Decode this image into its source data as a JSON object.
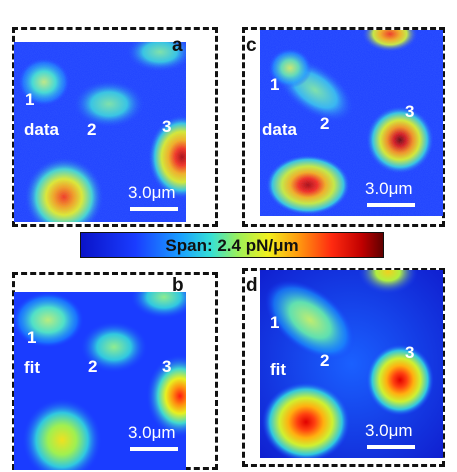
{
  "colorbar": {
    "label": "Span: 2.4 pN/μm"
  },
  "panels": [
    {
      "letter": "a",
      "type": "data",
      "scale": "3.0μm",
      "peak1": "1",
      "peak2": "2",
      "peak3": "3"
    },
    {
      "letter": "b",
      "type": "fit",
      "scale": "3.0μm",
      "peak1": "1",
      "peak2": "2",
      "peak3": "3"
    },
    {
      "letter": "c",
      "type": "data",
      "scale": "3.0μm",
      "peak1": "1",
      "peak2": "2",
      "peak3": "3"
    },
    {
      "letter": "d",
      "type": "fit",
      "scale": "3.0μm",
      "peak1": "1",
      "peak2": "2",
      "peak3": "3"
    }
  ],
  "colors": {
    "background": "#1a3cff",
    "low": "#0a14c8",
    "high": "#8a0000"
  }
}
